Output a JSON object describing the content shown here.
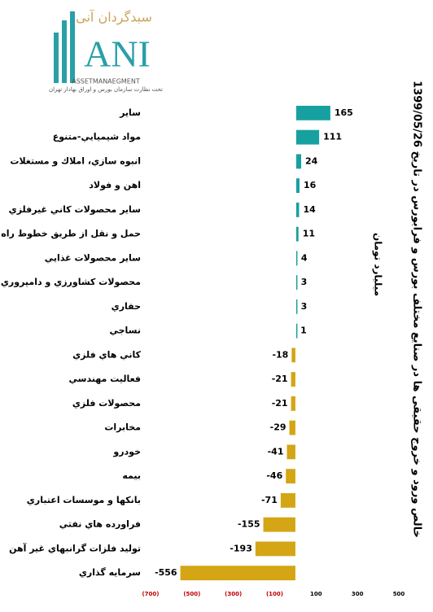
{
  "logo": {
    "brand": "سبدگردان آنی",
    "mark": "ANI",
    "tagline": "ASSETMANAEGMENT",
    "note": "تحت نظارت سازمان بورس و اوراق بهادار تهران"
  },
  "chart_data": {
    "type": "hbar",
    "title": "خالص ورود و خروج حقیقی ها در صنایع مختلف بورس و فرابورس در تاریخ 1399/05/26",
    "subtitle": "میلیارد تومان",
    "categories": [
      "ساير",
      "مواد شيميايي-متنوع",
      "انبوه سازي، املاك و مستغلات",
      "اهن و فولاد",
      "ساير محصولات کاني غيرفلزي",
      "حمل و نقل از طريق خطوط راه اهن",
      "ساير محصولات غذايي",
      "محصولات کشاورزي و دامپروري",
      "حفاري",
      "نساجي",
      "کاني هاي فلزي",
      "فعاليت مهندسي",
      "محصولات فلزي",
      "مخابرات",
      "خودرو",
      "بيمه",
      "بانکها و موسسات اعتباري",
      "فراورده هاي نفتي",
      "توليد فلزات گرانبهاي غير آهن",
      "سرمايه گذاري"
    ],
    "values": [
      165,
      111,
      24,
      16,
      14,
      11,
      4,
      3,
      3,
      1,
      -18,
      -21,
      -21,
      -29,
      -41,
      -46,
      -71,
      -155,
      -193,
      -556
    ],
    "color_positive": "#17a0a0",
    "color_negative": "#d4a514",
    "negative_tick_color": "#c00000",
    "xlim": [
      -700,
      500
    ],
    "xticks": [
      {
        "value": -700,
        "label": "(700)"
      },
      {
        "value": -500,
        "label": "(500)"
      },
      {
        "value": -300,
        "label": "(300)"
      },
      {
        "value": -100,
        "label": "(100)"
      },
      100,
      300,
      500
    ],
    "grid": false
  }
}
